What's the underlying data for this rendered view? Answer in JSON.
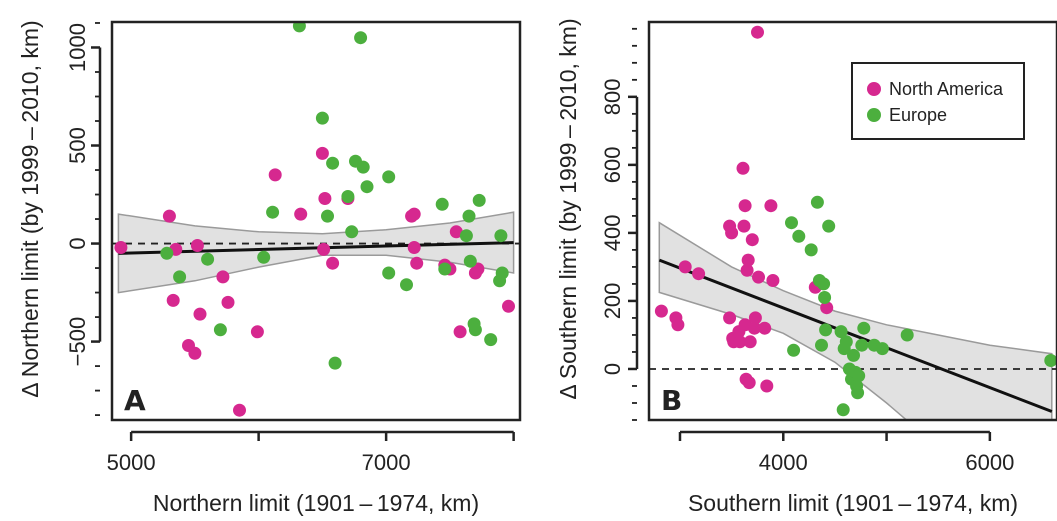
{
  "colors": {
    "north_america": "#d6288f",
    "europe": "#4caf3e",
    "band_fill": "#d9d9d9",
    "band_stroke": "#9a9a9a",
    "fit_line": "#111111"
  },
  "chart_data": [
    {
      "type": "scatter",
      "panel_label": "A",
      "xlabel": "Northern limit (1901 – 1974, km)",
      "ylabel": "Δ Northern limit (by 1999 – 2010, km)",
      "xlim": [
        4850,
        8050
      ],
      "ylim": [
        -900,
        1130
      ],
      "xticks": [
        5000,
        6000,
        7000,
        8000
      ],
      "xtick_labels": [
        "5000",
        "",
        "7000",
        ""
      ],
      "yticks": [
        -500,
        0,
        500,
        1000
      ],
      "ytick_labels": [
        "−500",
        "0",
        "500",
        "1000"
      ],
      "reference_line_y": 0,
      "fit": {
        "x": [
          4900,
          8000
        ],
        "y": [
          -50,
          5
        ]
      },
      "ci_band": {
        "x": [
          4900,
          5500,
          6000,
          6500,
          7000,
          7500,
          8000
        ],
        "upper": [
          150,
          90,
          60,
          50,
          70,
          105,
          160
        ],
        "lower": [
          -250,
          -190,
          -120,
          -60,
          -60,
          -95,
          -150
        ]
      },
      "series": [
        {
          "name": "North America",
          "color_key": "north_america",
          "points": [
            [
              4920,
              -20
            ],
            [
              5300,
              140
            ],
            [
              5350,
              -30
            ],
            [
              5330,
              -290
            ],
            [
              5450,
              -520
            ],
            [
              5500,
              -560
            ],
            [
              5520,
              -10
            ],
            [
              5540,
              -360
            ],
            [
              5720,
              -170
            ],
            [
              5760,
              -300
            ],
            [
              5850,
              -850
            ],
            [
              5990,
              -450
            ],
            [
              6130,
              350
            ],
            [
              6330,
              150
            ],
            [
              6500,
              460
            ],
            [
              6510,
              -30
            ],
            [
              6520,
              230
            ],
            [
              6580,
              -100
            ],
            [
              6700,
              230
            ],
            [
              7200,
              140
            ],
            [
              7220,
              150
            ],
            [
              7220,
              -20
            ],
            [
              7240,
              -100
            ],
            [
              7460,
              -110
            ],
            [
              7500,
              -130
            ],
            [
              7550,
              60
            ],
            [
              7580,
              -450
            ],
            [
              7700,
              -150
            ],
            [
              7720,
              -130
            ],
            [
              7960,
              -320
            ]
          ]
        },
        {
          "name": "Europe",
          "color_key": "europe",
          "points": [
            [
              5280,
              -50
            ],
            [
              5380,
              -170
            ],
            [
              5600,
              -80
            ],
            [
              5700,
              -440
            ],
            [
              6040,
              -70
            ],
            [
              6110,
              160
            ],
            [
              6320,
              1110
            ],
            [
              6500,
              640
            ],
            [
              6540,
              140
            ],
            [
              6580,
              410
            ],
            [
              6600,
              -610
            ],
            [
              6700,
              240
            ],
            [
              6730,
              60
            ],
            [
              6760,
              420
            ],
            [
              6800,
              1050
            ],
            [
              6820,
              390
            ],
            [
              6850,
              290
            ],
            [
              7020,
              340
            ],
            [
              7020,
              -150
            ],
            [
              7160,
              -210
            ],
            [
              7440,
              200
            ],
            [
              7460,
              -130
            ],
            [
              7630,
              40
            ],
            [
              7650,
              140
            ],
            [
              7660,
              -90
            ],
            [
              7690,
              -410
            ],
            [
              7700,
              -440
            ],
            [
              7730,
              220
            ],
            [
              7820,
              -490
            ],
            [
              7890,
              -190
            ],
            [
              7900,
              40
            ],
            [
              7910,
              -150
            ]
          ]
        }
      ]
    },
    {
      "type": "scatter",
      "panel_label": "B",
      "xlabel": "Southern limit (1901 – 1974, km)",
      "ylabel": "Δ Southern limit (by 1999 – 2010, km)",
      "xlim": [
        2700,
        6650
      ],
      "ylim": [
        -150,
        1020
      ],
      "xticks": [
        3000,
        4000,
        5000,
        6000
      ],
      "xtick_labels": [
        "",
        "4000",
        "",
        "6000"
      ],
      "yticks": [
        0,
        200,
        400,
        600,
        800
      ],
      "ytick_labels": [
        "0",
        "200",
        "400",
        "600",
        "800"
      ],
      "reference_line_y": 0,
      "legend": {
        "position": "top-right",
        "entries": [
          {
            "label": "North America",
            "color_key": "north_america"
          },
          {
            "label": "Europe",
            "color_key": "europe"
          }
        ]
      },
      "fit": {
        "x": [
          2800,
          6600
        ],
        "y": [
          320,
          -125
        ]
      },
      "ci_band": {
        "x": [
          2800,
          3500,
          4000,
          4500,
          5000,
          5500,
          6000,
          6600
        ],
        "upper": [
          430,
          300,
          230,
          170,
          130,
          100,
          70,
          45
        ],
        "lower": [
          225,
          160,
          105,
          20,
          -100,
          -230,
          -350,
          -470
        ]
      },
      "series": [
        {
          "name": "North America",
          "color_key": "north_america",
          "points": [
            [
              2820,
              170
            ],
            [
              2960,
              150
            ],
            [
              2980,
              130
            ],
            [
              3050,
              300
            ],
            [
              3180,
              280
            ],
            [
              3480,
              420
            ],
            [
              3480,
              150
            ],
            [
              3500,
              400
            ],
            [
              3510,
              90
            ],
            [
              3520,
              80
            ],
            [
              3570,
              110
            ],
            [
              3580,
              80
            ],
            [
              3610,
              590
            ],
            [
              3620,
              420
            ],
            [
              3630,
              480
            ],
            [
              3630,
              130
            ],
            [
              3640,
              -30
            ],
            [
              3650,
              290
            ],
            [
              3660,
              320
            ],
            [
              3670,
              -40
            ],
            [
              3680,
              80
            ],
            [
              3700,
              380
            ],
            [
              3720,
              120
            ],
            [
              3730,
              150
            ],
            [
              3750,
              990
            ],
            [
              3760,
              270
            ],
            [
              3820,
              120
            ],
            [
              3840,
              -50
            ],
            [
              3880,
              480
            ],
            [
              3900,
              260
            ],
            [
              4310,
              240
            ],
            [
              4420,
              180
            ]
          ]
        },
        {
          "name": "Europe",
          "color_key": "europe",
          "points": [
            [
              4080,
              430
            ],
            [
              4100,
              55
            ],
            [
              4150,
              390
            ],
            [
              4270,
              350
            ],
            [
              4330,
              490
            ],
            [
              4350,
              260
            ],
            [
              4370,
              70
            ],
            [
              4390,
              250
            ],
            [
              4400,
              210
            ],
            [
              4410,
              115
            ],
            [
              4440,
              420
            ],
            [
              4560,
              110
            ],
            [
              4580,
              -120
            ],
            [
              4590,
              60
            ],
            [
              4610,
              80
            ],
            [
              4640,
              0
            ],
            [
              4660,
              -30
            ],
            [
              4680,
              40
            ],
            [
              4700,
              -10
            ],
            [
              4710,
              -50
            ],
            [
              4720,
              -70
            ],
            [
              4730,
              -20
            ],
            [
              4760,
              70
            ],
            [
              4780,
              120
            ],
            [
              4880,
              70
            ],
            [
              4960,
              60
            ],
            [
              5200,
              100
            ],
            [
              6590,
              25
            ]
          ]
        }
      ]
    }
  ]
}
